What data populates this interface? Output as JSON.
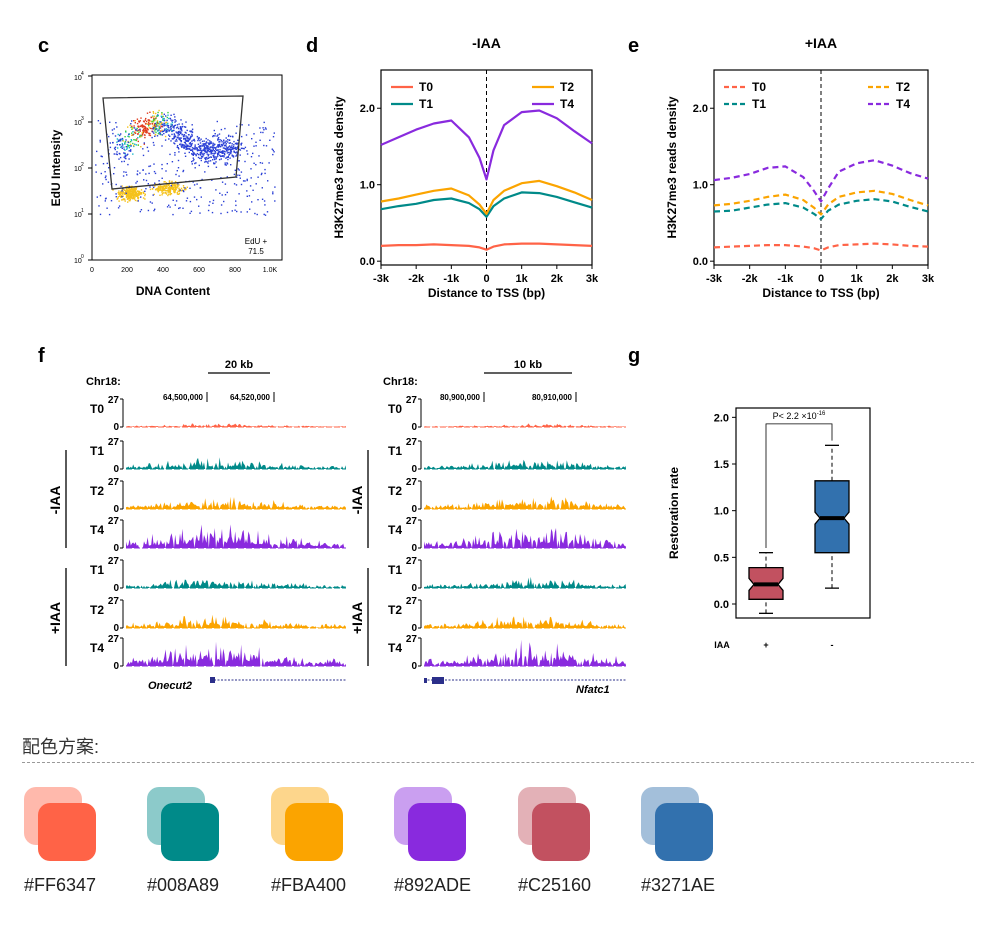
{
  "colors": {
    "T0": "#FF6347",
    "T1": "#008A89",
    "T2": "#FBA400",
    "T4": "#892ADE",
    "plus": "#C25160",
    "minus": "#3271AE"
  },
  "panel_c": {
    "letter": "c",
    "ylabel": "EdU Intensity",
    "xlabel": "DNA Content",
    "yticks": [
      "10",
      "10",
      "10",
      "10",
      "10"
    ],
    "yexp": [
      "0",
      "1",
      "2",
      "3",
      "4"
    ],
    "xticks": [
      "0",
      "200",
      "400",
      "600",
      "800",
      "1.0K"
    ],
    "gate_label": "EdU +",
    "gate_value": "71.5"
  },
  "panel_d": {
    "letter": "d"
  },
  "panel_e": {
    "letter": "e"
  },
  "panel_f": {
    "letter": "f",
    "left": {
      "chr": "Chr18:",
      "scale": "20 kb",
      "coord1": "64,500,000",
      "coord2": "64,520,000",
      "gene": "Onecut2"
    },
    "right": {
      "chr": "Chr18:",
      "scale": "10 kb",
      "coord1": "80,900,000",
      "coord2": "80,910,000",
      "gene": "Nfatc1"
    },
    "track_max": "27",
    "track_min": "0",
    "tracks": [
      "T0",
      "T1",
      "T2",
      "T4",
      "T1",
      "T2",
      "T4"
    ],
    "group_minus": "-IAA",
    "group_plus": "+IAA"
  },
  "panel_g": {
    "letter": "g"
  },
  "chart_data": [
    {
      "type": "line",
      "title": "-IAA",
      "xlabel": "Distance to TSS (bp)",
      "ylabel": "H3K27me3 reads density",
      "x_ticks": [
        "-3k",
        "-2k",
        "-1k",
        "0",
        "1k",
        "2k",
        "3k"
      ],
      "y_ticks": [
        "0.0",
        "1.0",
        "2.0"
      ],
      "xlim": [
        -3000,
        3000
      ],
      "ylim": [
        -0.05,
        2.5
      ],
      "line_style": "solid",
      "legend": [
        "T0",
        "T1",
        "T2",
        "T4"
      ],
      "x": [
        -3000,
        -2500,
        -2000,
        -1500,
        -1000,
        -500,
        -200,
        0,
        200,
        500,
        1000,
        1500,
        2000,
        2500,
        3000
      ],
      "series": [
        {
          "name": "T0",
          "values": [
            0.2,
            0.21,
            0.21,
            0.22,
            0.21,
            0.2,
            0.18,
            0.15,
            0.19,
            0.22,
            0.23,
            0.23,
            0.22,
            0.21,
            0.2
          ]
        },
        {
          "name": "T1",
          "values": [
            0.68,
            0.72,
            0.75,
            0.8,
            0.82,
            0.76,
            0.68,
            0.58,
            0.72,
            0.82,
            0.9,
            0.89,
            0.84,
            0.77,
            0.7
          ]
        },
        {
          "name": "T2",
          "values": [
            0.78,
            0.82,
            0.87,
            0.92,
            0.95,
            0.86,
            0.74,
            0.62,
            0.8,
            0.92,
            1.02,
            1.05,
            0.98,
            0.9,
            0.8
          ]
        },
        {
          "name": "T4",
          "values": [
            1.52,
            1.62,
            1.72,
            1.8,
            1.84,
            1.62,
            1.35,
            1.07,
            1.45,
            1.78,
            1.95,
            1.97,
            1.87,
            1.7,
            1.54
          ]
        }
      ]
    },
    {
      "type": "line",
      "title": "+IAA",
      "xlabel": "Distance to TSS (bp)",
      "ylabel": "H3K27me3 reads density",
      "x_ticks": [
        "-3k",
        "-2k",
        "-1k",
        "0",
        "1k",
        "2k",
        "3k"
      ],
      "y_ticks": [
        "0.0",
        "1.0",
        "2.0"
      ],
      "xlim": [
        -3000,
        3000
      ],
      "ylim": [
        -0.05,
        2.5
      ],
      "line_style": "dashed",
      "legend": [
        "T0",
        "T1",
        "T2",
        "T4"
      ],
      "x": [
        -3000,
        -2500,
        -2000,
        -1500,
        -1000,
        -500,
        -200,
        0,
        200,
        500,
        1000,
        1500,
        2000,
        2500,
        3000
      ],
      "series": [
        {
          "name": "T0",
          "values": [
            0.18,
            0.19,
            0.2,
            0.21,
            0.21,
            0.19,
            0.17,
            0.14,
            0.18,
            0.21,
            0.22,
            0.23,
            0.22,
            0.2,
            0.19
          ]
        },
        {
          "name": "T1",
          "values": [
            0.65,
            0.66,
            0.7,
            0.74,
            0.76,
            0.7,
            0.62,
            0.55,
            0.66,
            0.74,
            0.79,
            0.81,
            0.78,
            0.71,
            0.65
          ]
        },
        {
          "name": "T2",
          "values": [
            0.73,
            0.75,
            0.79,
            0.84,
            0.87,
            0.8,
            0.7,
            0.61,
            0.74,
            0.84,
            0.9,
            0.92,
            0.88,
            0.8,
            0.73
          ]
        },
        {
          "name": "T4",
          "values": [
            1.06,
            1.09,
            1.14,
            1.22,
            1.24,
            1.1,
            0.92,
            0.78,
            0.95,
            1.17,
            1.28,
            1.32,
            1.25,
            1.15,
            1.08
          ]
        }
      ]
    },
    {
      "type": "box",
      "ylabel": "Restoration rate",
      "y_ticks": [
        "0.0",
        "0.5",
        "1.0",
        "1.5",
        "2.0"
      ],
      "ylim": [
        -0.15,
        2.1
      ],
      "xaxis_label": "IAA",
      "categories": [
        "+",
        "-"
      ],
      "boxes": [
        {
          "name": "+",
          "whisker_low": -0.1,
          "q1": 0.05,
          "median": 0.21,
          "q3": 0.39,
          "whisker_high": 0.55
        },
        {
          "name": "-",
          "whisker_low": 0.17,
          "q1": 0.55,
          "median": 0.92,
          "q3": 1.32,
          "whisker_high": 1.7
        }
      ],
      "pvalue_text": "P< 2.2 ×10",
      "pvalue_exp": "-16"
    }
  ],
  "palette": {
    "title": "配色方案:",
    "swatches": [
      {
        "hex": "#FF6347",
        "label": "#FF6347"
      },
      {
        "hex": "#008A89",
        "label": "#008A89"
      },
      {
        "hex": "#FBA400",
        "label": "#FBA400"
      },
      {
        "hex": "#892ADE",
        "label": "#892ADE"
      },
      {
        "hex": "#C25160",
        "label": "#C25160"
      },
      {
        "hex": "#3271AE",
        "label": "#3271AE"
      }
    ]
  }
}
